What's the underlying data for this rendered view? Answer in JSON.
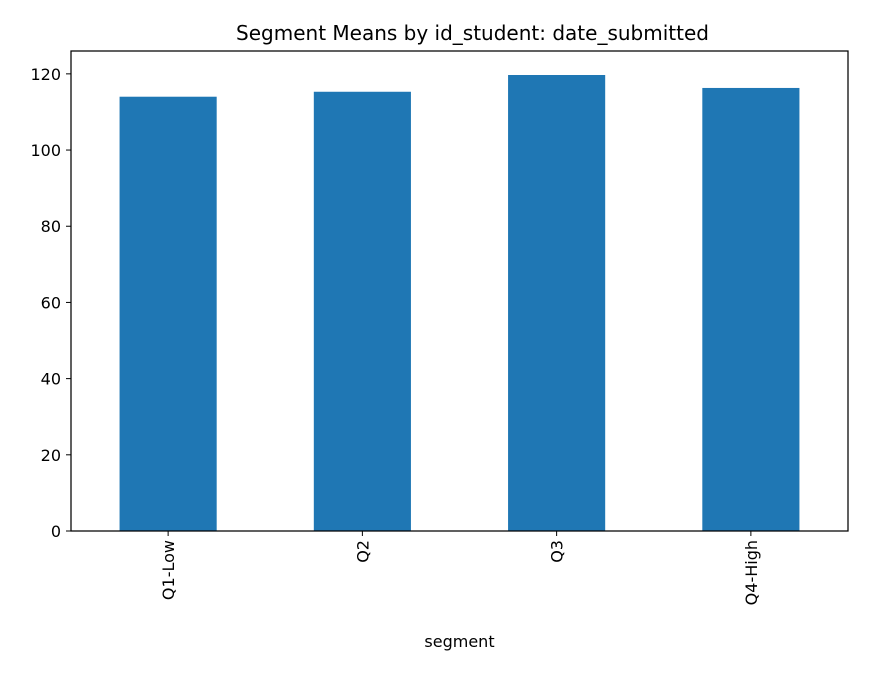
{
  "chart_data": {
    "type": "bar",
    "title": "Segment Means by id_student: date_submitted",
    "xlabel": "segment",
    "ylabel": "",
    "categories": [
      "Q1-Low",
      "Q2",
      "Q3",
      "Q4-High"
    ],
    "values": [
      114.0,
      115.3,
      119.7,
      116.3
    ],
    "ylim": [
      0,
      126
    ],
    "yticks": [
      0,
      20,
      40,
      60,
      80,
      100,
      120
    ],
    "grid": false,
    "bar_color": "#1f77b4"
  }
}
